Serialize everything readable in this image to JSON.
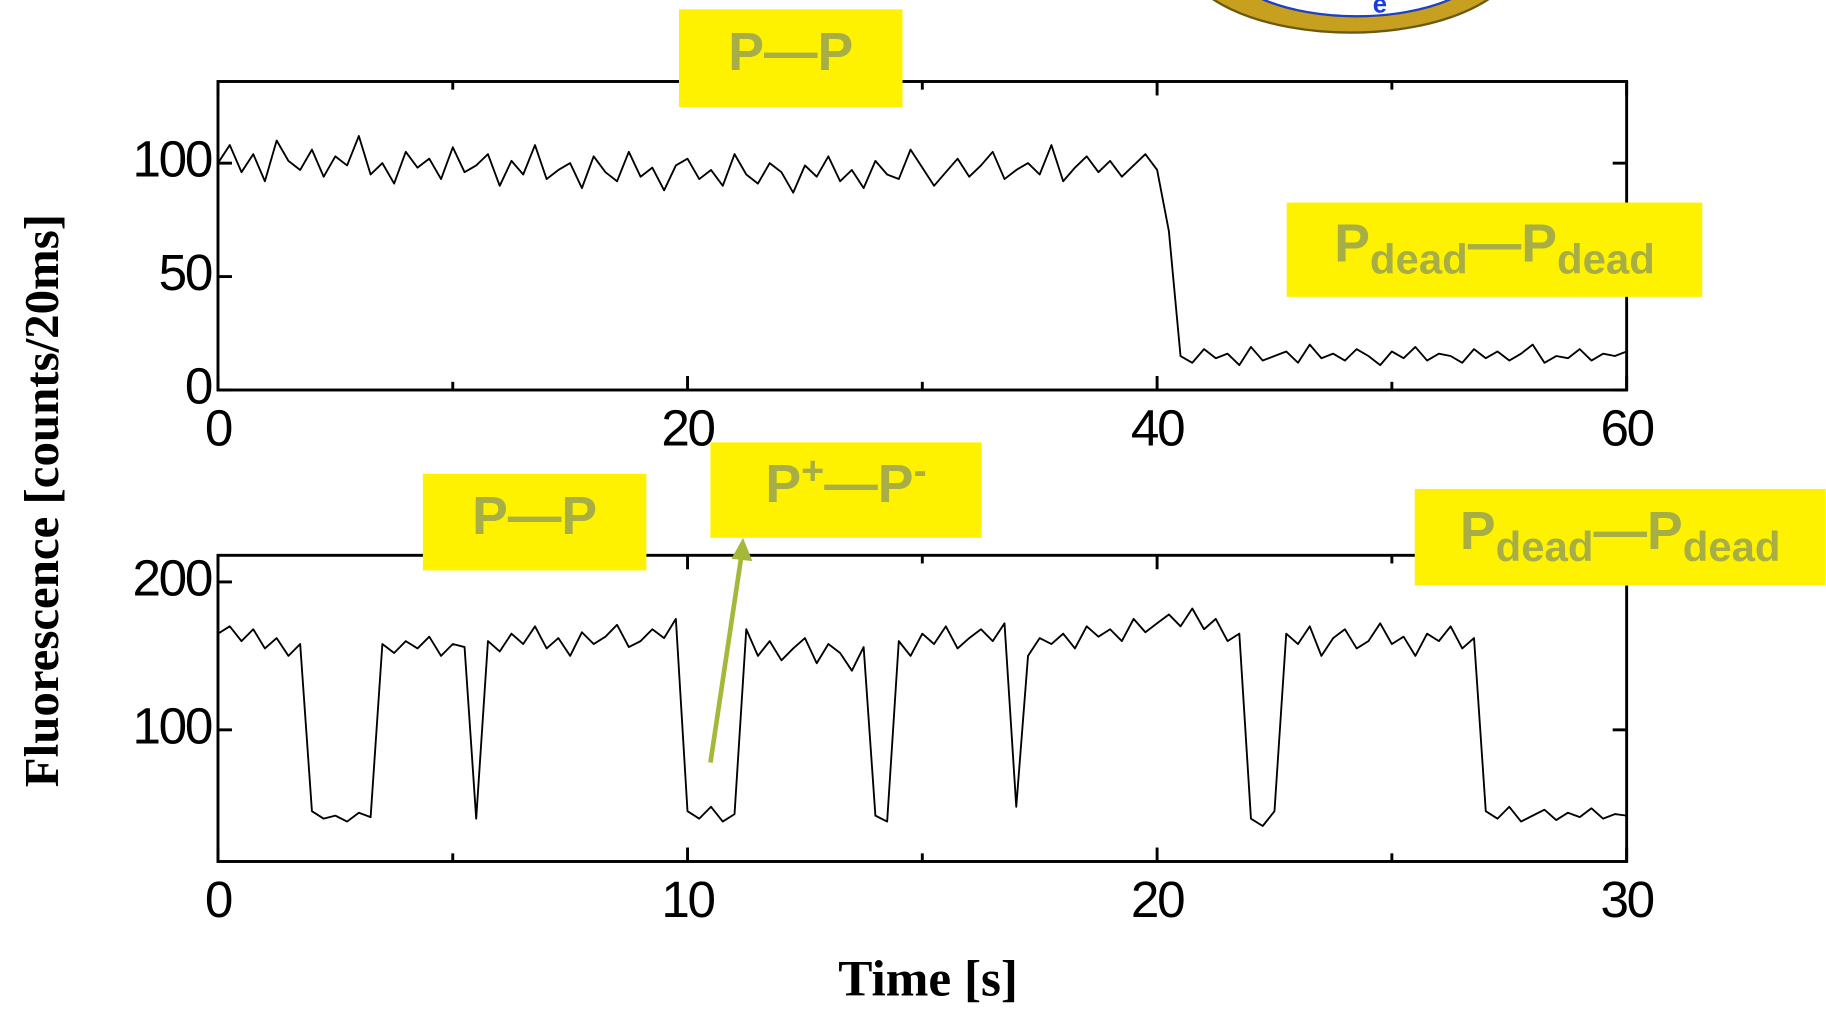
{
  "chart_data": [
    {
      "type": "line",
      "ylabel": "Fluorescence [counts/20ms]",
      "color": "#000000",
      "x": [
        0,
        0.5,
        1,
        1.5,
        2,
        2.5,
        3,
        3.5,
        4,
        4.5,
        5,
        5.5,
        6,
        6.5,
        7,
        7.5,
        8,
        8.5,
        9,
        9.5,
        10,
        10.5,
        11,
        11.5,
        12,
        12.5,
        13,
        13.5,
        14,
        14.5,
        15,
        15.5,
        16,
        16.5,
        17,
        17.5,
        18,
        18.5,
        19,
        19.5,
        20,
        20.5,
        21,
        21.5,
        22,
        22.5,
        23,
        23.5,
        24,
        24.5,
        25,
        25.5,
        26,
        26.5,
        27,
        27.5,
        28,
        28.5,
        29,
        29.5,
        30,
        30.5,
        31,
        31.5,
        32,
        32.5,
        33,
        33.5,
        34,
        34.5,
        35,
        35.5,
        36,
        36.5,
        37,
        37.5,
        38,
        38.5,
        39,
        39.5,
        40,
        40.5,
        41,
        41.5,
        42,
        42.5,
        43,
        43.5,
        44,
        44.5,
        45,
        45.5,
        46,
        46.5,
        47,
        47.5,
        48,
        48.5,
        49,
        49.5,
        50,
        50.5,
        51,
        51.5,
        52,
        52.5,
        53,
        53.5,
        54,
        54.5,
        55,
        55.5,
        56,
        56.5,
        57,
        57.5,
        58,
        58.5,
        59,
        59.5,
        60
      ],
      "values": [
        100,
        108,
        96,
        104,
        92,
        110,
        101,
        97,
        106,
        94,
        103,
        99,
        112,
        95,
        100,
        91,
        105,
        98,
        102,
        93,
        107,
        96,
        99,
        104,
        90,
        101,
        95,
        108,
        93,
        97,
        100,
        89,
        103,
        96,
        92,
        105,
        94,
        98,
        88,
        99,
        102,
        93,
        97,
        90,
        104,
        95,
        91,
        100,
        96,
        87,
        99,
        94,
        103,
        92,
        97,
        89,
        101,
        95,
        93,
        106,
        98,
        90,
        96,
        102,
        94,
        99,
        105,
        93,
        97,
        100,
        95,
        108,
        92,
        98,
        103,
        96,
        101,
        94,
        99,
        104,
        97,
        70,
        15,
        12,
        18,
        14,
        16,
        11,
        19,
        13,
        15,
        17,
        12,
        20,
        14,
        16,
        13,
        18,
        15,
        11,
        17,
        14,
        19,
        13,
        16,
        15,
        12,
        18,
        14,
        17,
        13,
        16,
        20,
        12,
        15,
        14,
        18,
        13,
        16,
        15,
        17
      ],
      "xlim": [
        0,
        60
      ],
      "ylim": [
        0,
        136
      ],
      "xticks": [
        0,
        20,
        40,
        60
      ],
      "xminor": [
        10,
        30,
        50
      ],
      "yticks": [
        0,
        50,
        100
      ],
      "annotations": [
        {
          "parts": [
            {
              "text": "P—P"
            }
          ]
        },
        {
          "parts": [
            {
              "text": "P"
            },
            {
              "text": "dead",
              "sub": true
            },
            {
              "text": "—P"
            },
            {
              "text": "dead",
              "sub": true
            }
          ]
        }
      ]
    },
    {
      "type": "line",
      "xlabel": "Time [s]",
      "color": "#000000",
      "x": [
        0,
        0.25,
        0.5,
        0.75,
        1,
        1.25,
        1.5,
        1.75,
        2,
        2.25,
        2.5,
        2.75,
        3,
        3.25,
        3.5,
        3.75,
        4,
        4.25,
        4.5,
        4.75,
        5,
        5.25,
        5.5,
        5.75,
        6,
        6.25,
        6.5,
        6.75,
        7,
        7.25,
        7.5,
        7.75,
        8,
        8.25,
        8.5,
        8.75,
        9,
        9.25,
        9.5,
        9.75,
        10,
        10.25,
        10.5,
        10.75,
        11,
        11.25,
        11.5,
        11.75,
        12,
        12.25,
        12.5,
        12.75,
        13,
        13.25,
        13.5,
        13.75,
        14,
        14.25,
        14.5,
        14.75,
        15,
        15.25,
        15.5,
        15.75,
        16,
        16.25,
        16.5,
        16.75,
        17,
        17.25,
        17.5,
        17.75,
        18,
        18.25,
        18.5,
        18.75,
        19,
        19.25,
        19.5,
        19.75,
        20,
        20.25,
        20.5,
        20.75,
        21,
        21.25,
        21.5,
        21.75,
        22,
        22.25,
        22.5,
        22.75,
        23,
        23.25,
        23.5,
        23.75,
        24,
        24.25,
        24.5,
        24.75,
        25,
        25.25,
        25.5,
        25.75,
        26,
        26.25,
        26.5,
        26.75,
        27,
        27.25,
        27.5,
        27.75,
        28,
        28.25,
        28.5,
        28.75,
        29,
        29.25,
        29.5,
        29.75,
        30
      ],
      "values": [
        165,
        170,
        160,
        168,
        155,
        162,
        150,
        158,
        45,
        40,
        42,
        38,
        44,
        41,
        158,
        152,
        160,
        155,
        163,
        150,
        158,
        156,
        40,
        160,
        153,
        165,
        158,
        170,
        155,
        162,
        150,
        166,
        158,
        163,
        171,
        156,
        160,
        168,
        162,
        175,
        45,
        40,
        48,
        38,
        43,
        168,
        150,
        160,
        147,
        155,
        162,
        145,
        158,
        152,
        140,
        156,
        42,
        38,
        160,
        150,
        165,
        158,
        170,
        155,
        162,
        168,
        160,
        172,
        48,
        150,
        162,
        158,
        165,
        155,
        170,
        163,
        168,
        160,
        175,
        166,
        172,
        178,
        170,
        182,
        168,
        175,
        160,
        165,
        40,
        35,
        45,
        165,
        158,
        170,
        150,
        162,
        168,
        155,
        160,
        172,
        158,
        163,
        150,
        165,
        160,
        170,
        155,
        162,
        45,
        40,
        48,
        38,
        42,
        46,
        39,
        44,
        41,
        47,
        40,
        43,
        42
      ],
      "xlim": [
        0,
        30
      ],
      "ylim": [
        11,
        218
      ],
      "xticks": [
        0,
        10,
        20,
        30
      ],
      "xminor": [
        5,
        15,
        25
      ],
      "yticks": [
        100,
        200
      ],
      "annotations": [
        {
          "parts": [
            {
              "text": "P—P"
            }
          ]
        },
        {
          "parts": [
            {
              "text": "P"
            },
            {
              "text": "+",
              "sup": true
            },
            {
              "text": "—P"
            },
            {
              "text": "-",
              "sup": true
            }
          ]
        },
        {
          "parts": [
            {
              "text": "P"
            },
            {
              "text": "dead",
              "sub": true
            },
            {
              "text": "—P"
            },
            {
              "text": "dead",
              "sub": true
            }
          ]
        }
      ]
    }
  ],
  "graphic_label": "e"
}
